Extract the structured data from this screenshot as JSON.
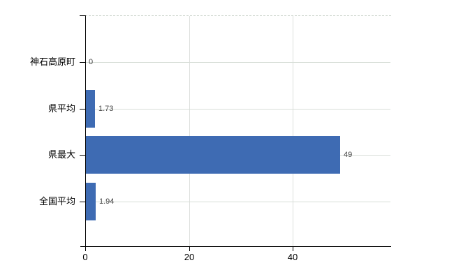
{
  "chart_data": {
    "type": "bar",
    "orientation": "horizontal",
    "title": "",
    "categories": [
      "神石高原町",
      "県平均",
      "県最大",
      "全国平均"
    ],
    "values": [
      0,
      1.73,
      49,
      1.94
    ],
    "value_labels": [
      "0",
      "1.73",
      "49",
      "1.94"
    ],
    "x_ticks": [
      0,
      20,
      40
    ],
    "x_tick_labels": [
      "0",
      "20",
      "40"
    ],
    "xlim": [
      0,
      58.9
    ],
    "xlabel": "",
    "ylabel": "",
    "grid": true,
    "legend": false,
    "bar_color": "#3e6bb3",
    "gridline_color": "#d7ddd7",
    "axis_color": "#000000",
    "value_label_color": "#444444",
    "background_color": "#ffffff"
  }
}
